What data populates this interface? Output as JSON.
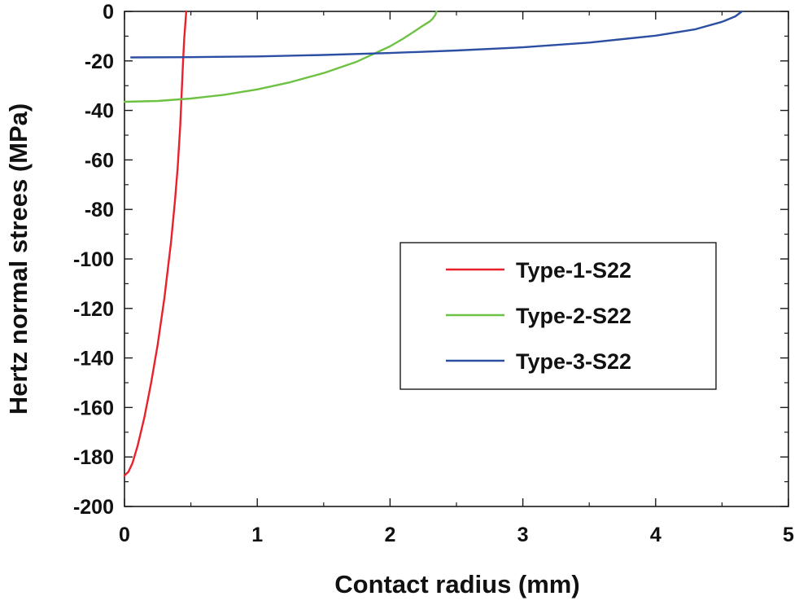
{
  "chart_data": {
    "type": "line",
    "xlabel": "Contact radius (mm)",
    "ylabel": "Hertz normal strees (MPa)",
    "xlim": [
      0,
      5
    ],
    "ylim": [
      -200,
      0
    ],
    "x_ticks": [
      0,
      1,
      2,
      3,
      4,
      5
    ],
    "x_tick_labels": [
      "0",
      "1",
      "2",
      "3",
      "4",
      "5"
    ],
    "y_ticks": [
      0,
      -20,
      -40,
      -60,
      -80,
      -100,
      -120,
      -140,
      -160,
      -180,
      -200
    ],
    "y_tick_labels": [
      "0",
      "-20",
      "-40",
      "-60",
      "-80",
      "-100",
      "-120",
      "-140",
      "-160",
      "-180",
      "-200"
    ],
    "grid": false,
    "legend_position": "right-middle",
    "series": [
      {
        "name": "Type-1-S22",
        "color": "#e8212b",
        "x": [
          0.0,
          0.03,
          0.06,
          0.1,
          0.15,
          0.2,
          0.25,
          0.3,
          0.35,
          0.38,
          0.4,
          0.42,
          0.44,
          0.45,
          0.46,
          0.465
        ],
        "y": [
          -187.5,
          -186.0,
          -182.5,
          -175.3,
          -163.9,
          -150.3,
          -134.6,
          -115.9,
          -93.5,
          -76.6,
          -63.4,
          -46.3,
          -21.5,
          -11.1,
          -3.5,
          0
        ]
      },
      {
        "name": "Type-2-S22",
        "color": "#6ec243",
        "x": [
          0.0,
          0.25,
          0.5,
          0.75,
          1.0,
          1.25,
          1.5,
          1.75,
          2.0,
          2.1,
          2.2,
          2.25,
          2.3,
          2.32,
          2.34,
          2.35
        ],
        "y": [
          -36.5,
          -36.2,
          -35.2,
          -33.7,
          -31.5,
          -28.6,
          -24.9,
          -20.3,
          -14.1,
          -11.0,
          -7.5,
          -5.7,
          -4.0,
          -3.0,
          -1.5,
          0
        ]
      },
      {
        "name": "Type-3-S22",
        "color": "#2d4fa3",
        "x": [
          0.05,
          0.5,
          1.0,
          1.5,
          2.0,
          2.5,
          3.0,
          3.5,
          4.0,
          4.3,
          4.5,
          4.6,
          4.65
        ],
        "y": [
          -18.6,
          -18.5,
          -18.2,
          -17.6,
          -16.8,
          -15.8,
          -14.5,
          -12.6,
          -9.8,
          -7.2,
          -4.2,
          -2.0,
          0
        ]
      }
    ]
  }
}
